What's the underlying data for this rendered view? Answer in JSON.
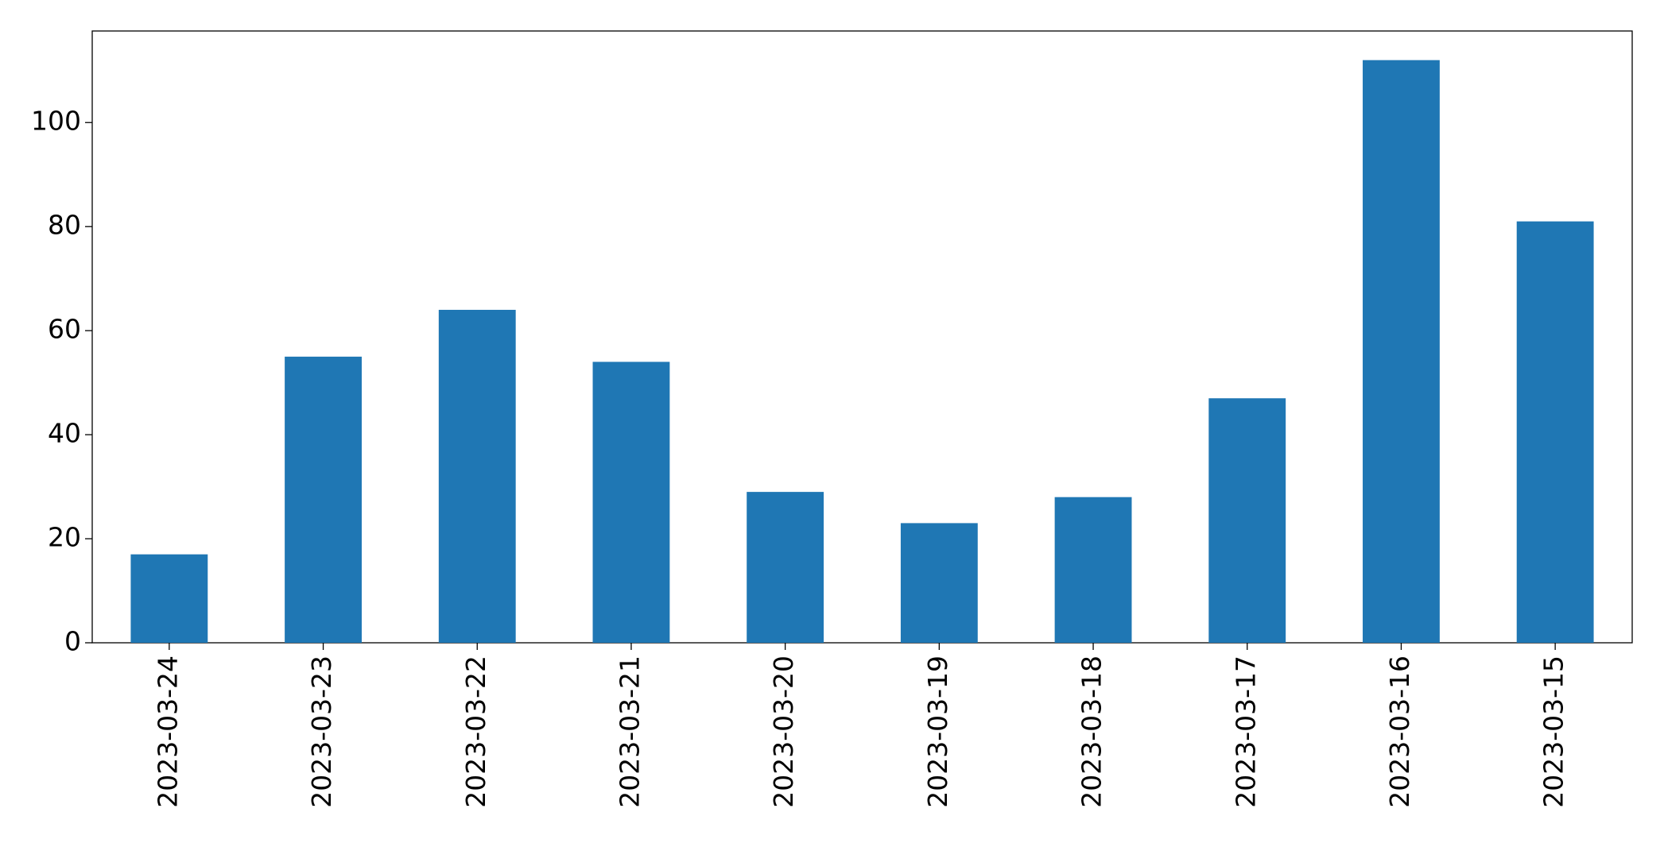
{
  "chart_data": {
    "type": "bar",
    "categories": [
      "2023-03-24",
      "2023-03-23",
      "2023-03-22",
      "2023-03-21",
      "2023-03-20",
      "2023-03-19",
      "2023-03-18",
      "2023-03-17",
      "2023-03-16",
      "2023-03-15"
    ],
    "values": [
      17,
      55,
      64,
      54,
      29,
      23,
      28,
      47,
      112,
      81
    ],
    "color": "#1f77b4",
    "ylim": [
      0,
      117.6
    ],
    "yticks": [
      0,
      20,
      40,
      60,
      80,
      100
    ],
    "grid": false
  }
}
